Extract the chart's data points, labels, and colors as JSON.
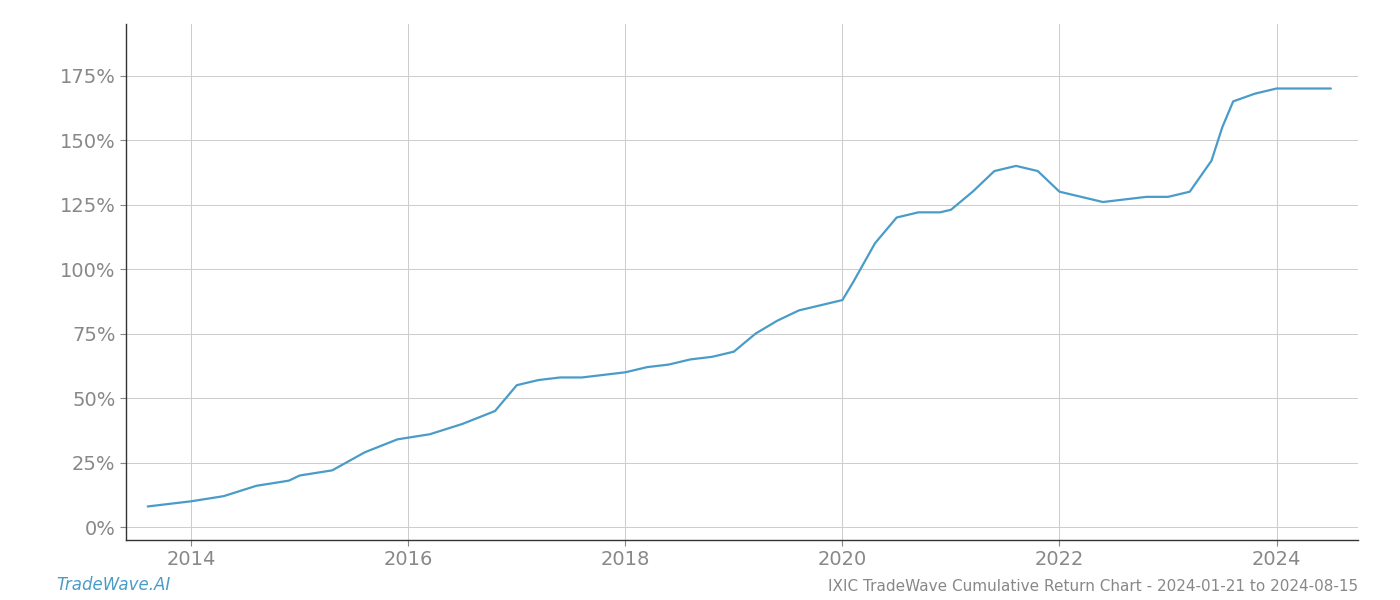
{
  "title": "IXIC TradeWave Cumulative Return Chart - 2024-01-21 to 2024-08-15",
  "watermark": "TradeWave.AI",
  "line_color": "#4a9cc8",
  "background_color": "#ffffff",
  "grid_color": "#cccccc",
  "x_years": [
    2014,
    2016,
    2018,
    2020,
    2022,
    2024
  ],
  "data_x": [
    2013.6,
    2014.0,
    2014.3,
    2014.6,
    2014.9,
    2015.0,
    2015.3,
    2015.6,
    2015.9,
    2016.2,
    2016.5,
    2016.8,
    2017.0,
    2017.2,
    2017.4,
    2017.6,
    2017.8,
    2018.0,
    2018.2,
    2018.4,
    2018.6,
    2018.8,
    2019.0,
    2019.2,
    2019.4,
    2019.6,
    2019.8,
    2020.0,
    2020.1,
    2020.3,
    2020.5,
    2020.7,
    2020.9,
    2021.0,
    2021.2,
    2021.4,
    2021.6,
    2021.8,
    2022.0,
    2022.2,
    2022.4,
    2022.6,
    2022.8,
    2023.0,
    2023.2,
    2023.4,
    2023.5,
    2023.6,
    2023.8,
    2024.0,
    2024.2,
    2024.5
  ],
  "data_y": [
    8,
    10,
    12,
    16,
    18,
    20,
    22,
    29,
    34,
    36,
    40,
    45,
    55,
    57,
    58,
    58,
    59,
    60,
    62,
    63,
    65,
    66,
    68,
    75,
    80,
    84,
    86,
    88,
    95,
    110,
    120,
    122,
    122,
    123,
    130,
    138,
    140,
    138,
    130,
    128,
    126,
    127,
    128,
    128,
    130,
    142,
    155,
    165,
    168,
    170,
    170,
    170
  ],
  "ylim": [
    -5,
    195
  ],
  "yticks": [
    0,
    25,
    50,
    75,
    100,
    125,
    150,
    175
  ],
  "xlim": [
    2013.4,
    2024.75
  ],
  "title_fontsize": 11,
  "watermark_fontsize": 12,
  "tick_fontsize": 14,
  "line_width": 1.6
}
